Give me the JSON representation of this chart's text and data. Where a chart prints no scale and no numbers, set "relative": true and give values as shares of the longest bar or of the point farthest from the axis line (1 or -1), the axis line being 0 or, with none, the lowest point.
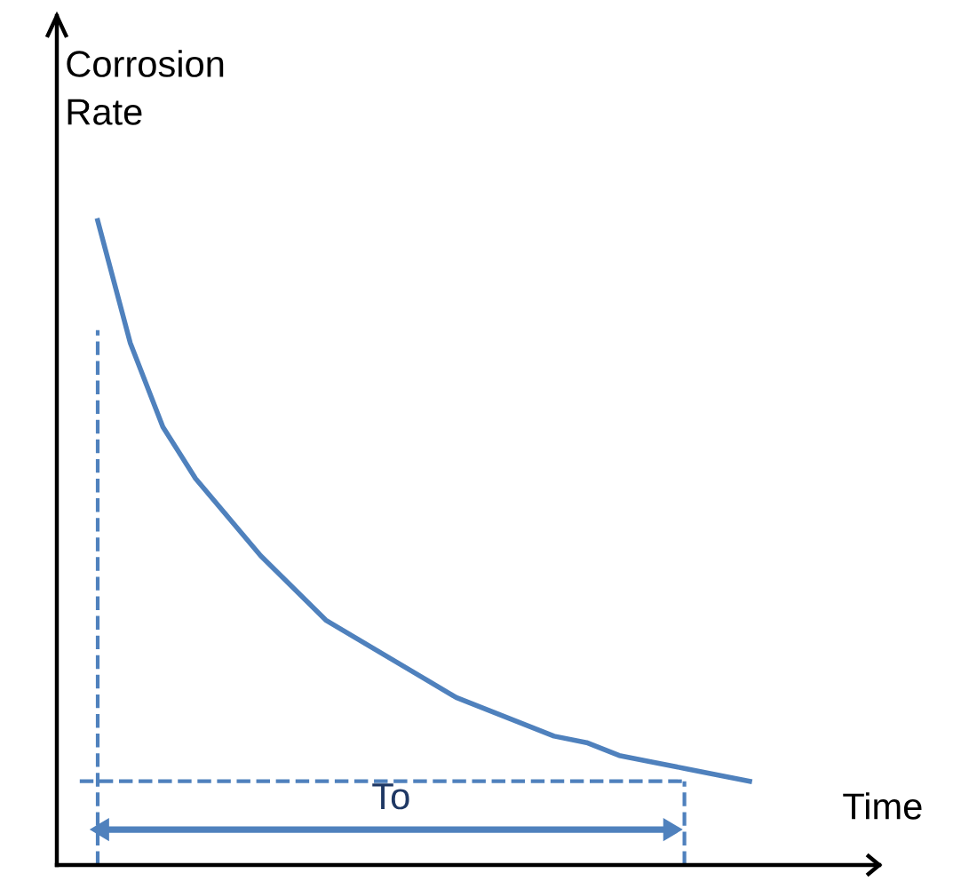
{
  "chart_data": {
    "type": "line",
    "relative": true,
    "xlabel": "Time",
    "ylabel": "Corrosion\nRate",
    "annotations": [
      "To"
    ],
    "categories": [
      null,
      null,
      null,
      null,
      null,
      null,
      null,
      null,
      null,
      null,
      null,
      null,
      null,
      null,
      null,
      null,
      null,
      null,
      null,
      null,
      null
    ],
    "series": [
      {
        "color": "#4f81bd",
        "values": [
          1.0,
          0.81,
          0.68,
          0.6,
          0.54,
          0.48,
          0.43,
          0.38,
          0.35,
          0.32,
          0.29,
          0.26,
          0.24,
          0.22,
          0.2,
          0.19,
          0.17,
          0.16,
          0.15,
          0.14,
          0.13
        ]
      }
    ],
    "ref_lines": [
      {
        "axis": "y",
        "value": 0.13,
        "color": "#4f81bd",
        "line_style": "dashed"
      }
    ],
    "marker": "none",
    "line_style": "solid",
    "grid": false
  }
}
